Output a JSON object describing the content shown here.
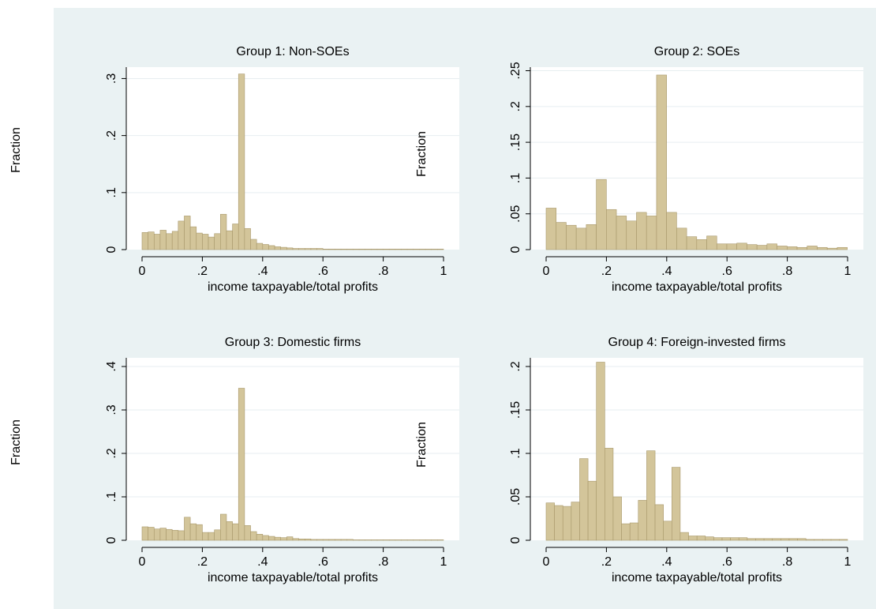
{
  "figure": {
    "background": "#eaf2f3",
    "panel_background": "#ffffff",
    "bar_fill": "#d3c59a",
    "bar_stroke": "#a8986b",
    "grid_color": "#e7eef0",
    "outer_ylabel": "Fraction"
  },
  "chart_data": [
    {
      "type": "bar",
      "title": "Group 1: Non-SOEs",
      "xlabel": "income taxpayable/total profits",
      "ylabel": "Fraction",
      "show_inner_ylabel": false,
      "xlim": [
        0,
        1
      ],
      "ylim": [
        0,
        0.32
      ],
      "xticks": [
        0,
        0.2,
        0.4,
        0.6,
        0.8,
        1
      ],
      "xtick_labels": [
        "0",
        ".2",
        ".4",
        ".6",
        ".8",
        "1"
      ],
      "yticks": [
        0,
        0.1,
        0.2,
        0.3
      ],
      "ytick_labels": [
        "0",
        ".1",
        ".2",
        ".3"
      ],
      "grid": true,
      "bin_width": 0.02,
      "values": [
        0.03,
        0.031,
        0.027,
        0.034,
        0.028,
        0.032,
        0.05,
        0.059,
        0.04,
        0.029,
        0.027,
        0.022,
        0.028,
        0.062,
        0.033,
        0.045,
        0.308,
        0.037,
        0.018,
        0.011,
        0.009,
        0.007,
        0.005,
        0.004,
        0.003,
        0.002,
        0.002,
        0.002,
        0.002,
        0.002,
        0.001,
        0.001,
        0.001,
        0.001,
        0.001,
        0.001,
        0.001,
        0.001,
        0.001,
        0.001,
        0.001,
        0.001,
        0.001,
        0.001,
        0.001,
        0.001,
        0.001,
        0.001,
        0.001,
        0.001
      ]
    },
    {
      "type": "bar",
      "title": "Group 2: SOEs",
      "xlabel": "income taxpayable/total profits",
      "ylabel": "Fraction",
      "show_inner_ylabel": true,
      "xlim": [
        0,
        1
      ],
      "ylim": [
        0,
        0.255
      ],
      "xticks": [
        0,
        0.2,
        0.4,
        0.6,
        0.8,
        1
      ],
      "xtick_labels": [
        "0",
        ".2",
        ".4",
        ".6",
        ".8",
        "1"
      ],
      "yticks": [
        0,
        0.05,
        0.1,
        0.15,
        0.2,
        0.25
      ],
      "ytick_labels": [
        "0",
        ".05",
        ".1",
        ".15",
        ".2",
        ".25"
      ],
      "grid": true,
      "bin_width": 0.0333,
      "values": [
        0.058,
        0.038,
        0.034,
        0.03,
        0.035,
        0.098,
        0.056,
        0.047,
        0.04,
        0.052,
        0.047,
        0.244,
        0.052,
        0.03,
        0.018,
        0.014,
        0.019,
        0.008,
        0.008,
        0.009,
        0.007,
        0.006,
        0.008,
        0.005,
        0.004,
        0.003,
        0.005,
        0.003,
        0.002,
        0.003
      ]
    },
    {
      "type": "bar",
      "title": "Group 3: Domestic firms",
      "xlabel": "income taxpayable/total profits",
      "ylabel": "Fraction",
      "show_inner_ylabel": false,
      "xlim": [
        0,
        1
      ],
      "ylim": [
        0,
        0.42
      ],
      "xticks": [
        0,
        0.2,
        0.4,
        0.6,
        0.8,
        1
      ],
      "xtick_labels": [
        "0",
        ".2",
        ".4",
        ".6",
        ".8",
        "1"
      ],
      "yticks": [
        0,
        0.1,
        0.2,
        0.3,
        0.4
      ],
      "ytick_labels": [
        "0",
        ".1",
        ".2",
        ".3",
        ".4"
      ],
      "grid": true,
      "bin_width": 0.02,
      "values": [
        0.031,
        0.03,
        0.026,
        0.028,
        0.025,
        0.023,
        0.022,
        0.053,
        0.038,
        0.036,
        0.018,
        0.018,
        0.024,
        0.06,
        0.043,
        0.038,
        0.35,
        0.034,
        0.02,
        0.014,
        0.011,
        0.009,
        0.007,
        0.006,
        0.008,
        0.004,
        0.003,
        0.003,
        0.002,
        0.002,
        0.002,
        0.002,
        0.002,
        0.002,
        0.002,
        0.001,
        0.001,
        0.001,
        0.001,
        0.001,
        0.001,
        0.001,
        0.001,
        0.001,
        0.001,
        0.001,
        0.001,
        0.001,
        0.001,
        0.001
      ]
    },
    {
      "type": "bar",
      "title": "Group 4: Foreign-invested firms",
      "xlabel": "income taxpayable/total profits",
      "ylabel": "Fraction",
      "show_inner_ylabel": true,
      "xlim": [
        0,
        1
      ],
      "ylim": [
        0,
        0.21
      ],
      "xticks": [
        0,
        0.2,
        0.4,
        0.6,
        0.8,
        1
      ],
      "xtick_labels": [
        "0",
        ".2",
        ".4",
        ".6",
        ".8",
        "1"
      ],
      "yticks": [
        0,
        0.05,
        0.1,
        0.15,
        0.2
      ],
      "ytick_labels": [
        "0",
        ".05",
        ".1",
        ".15",
        ".2"
      ],
      "grid": true,
      "bin_width": 0.0278,
      "values": [
        0.043,
        0.04,
        0.039,
        0.044,
        0.094,
        0.068,
        0.205,
        0.106,
        0.05,
        0.019,
        0.02,
        0.046,
        0.103,
        0.041,
        0.022,
        0.084,
        0.009,
        0.005,
        0.005,
        0.004,
        0.003,
        0.003,
        0.003,
        0.003,
        0.002,
        0.002,
        0.002,
        0.002,
        0.002,
        0.002,
        0.002,
        0.001,
        0.001,
        0.001,
        0.001,
        0.001
      ]
    }
  ]
}
